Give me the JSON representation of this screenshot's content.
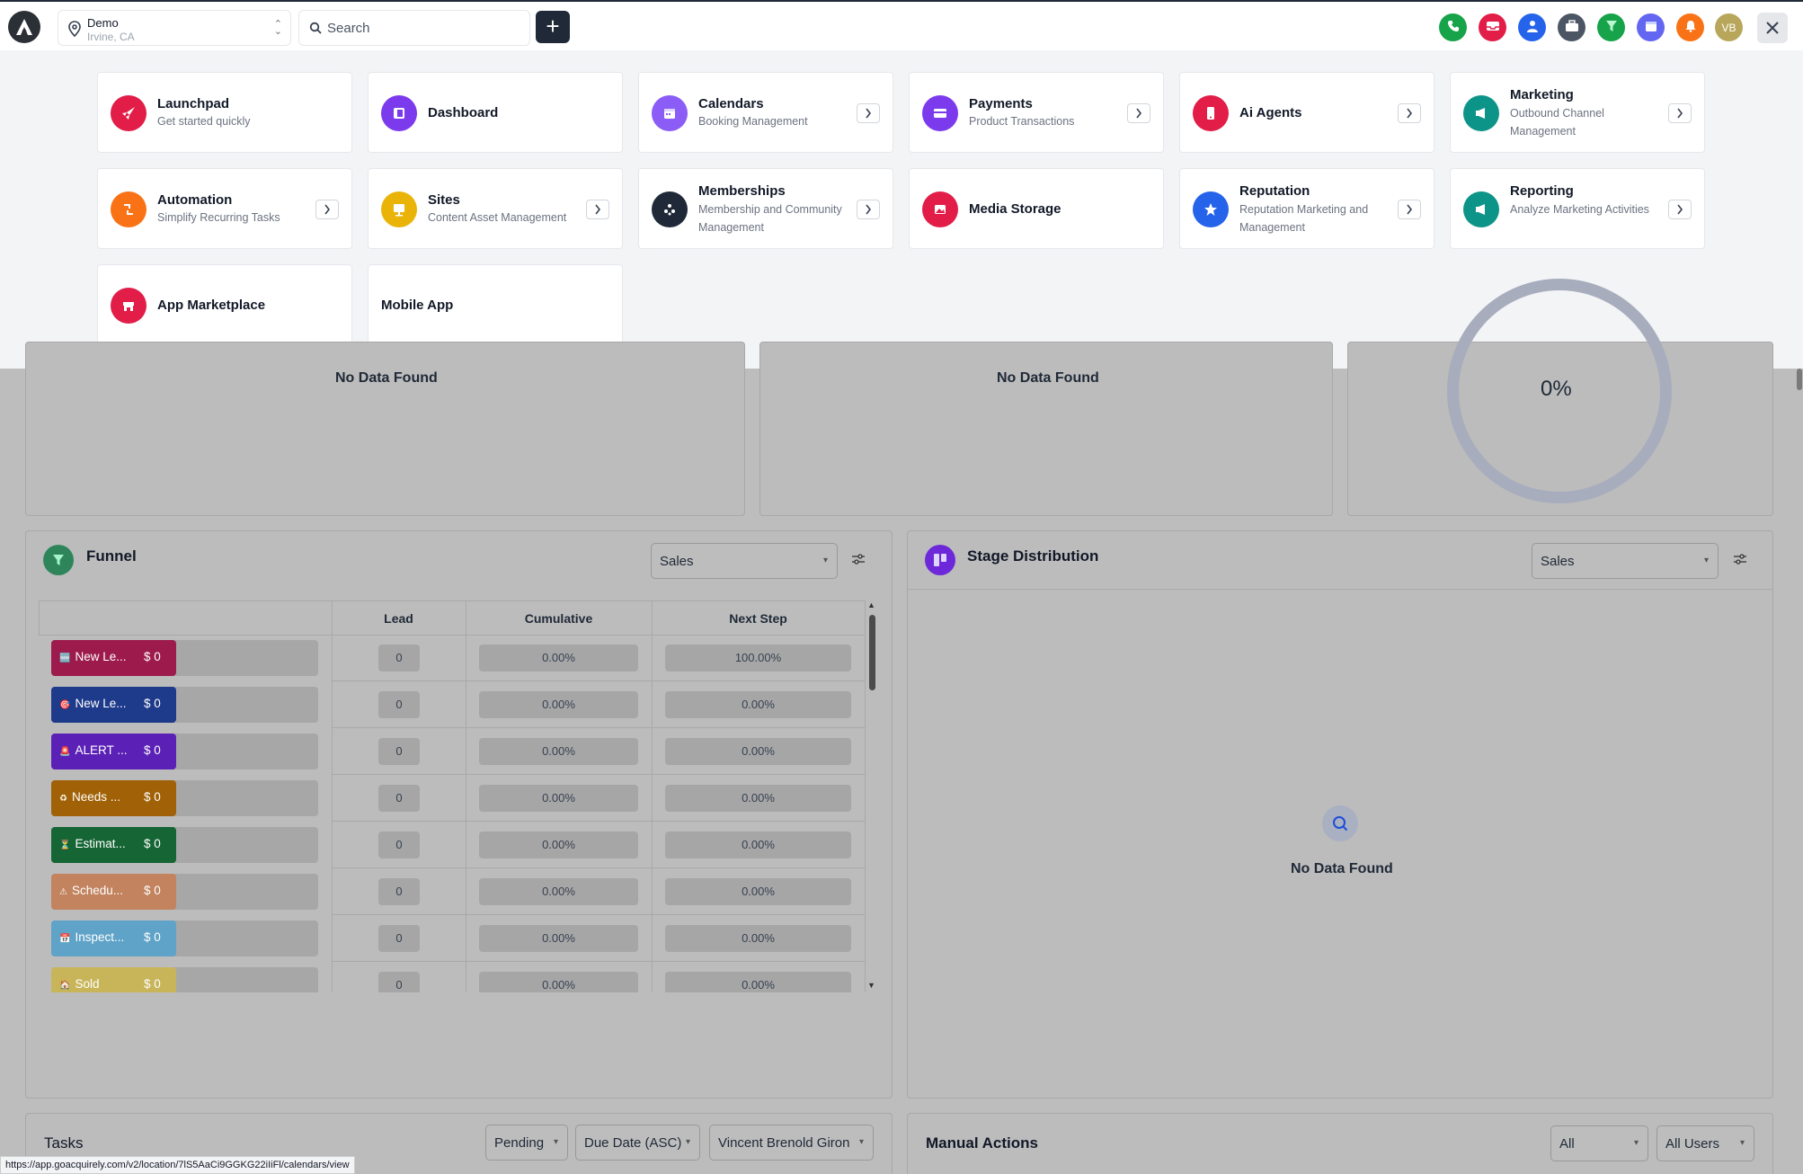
{
  "topbar": {
    "location_name": "Demo",
    "location_sub": "Irvine, CA",
    "search_placeholder": "Search",
    "avatar_initials": "VB",
    "quick_buttons": [
      {
        "name": "phone-icon",
        "color": "#16a34a"
      },
      {
        "name": "inbox-icon",
        "color": "#e11d48"
      },
      {
        "name": "user-icon",
        "color": "#2563eb"
      },
      {
        "name": "briefcase-icon",
        "color": "#4b5563"
      },
      {
        "name": "funnel-icon",
        "color": "#16a34a"
      },
      {
        "name": "calendar-icon",
        "color": "#6366f1"
      },
      {
        "name": "bell-icon",
        "color": "#f97316"
      }
    ]
  },
  "launcher": {
    "cards": [
      {
        "title": "Launchpad",
        "subtitle": "Get started quickly",
        "color": "#e11d48",
        "icon": "rocket-icon",
        "arrow": false
      },
      {
        "title": "Dashboard",
        "subtitle": "",
        "color": "#7c3aed",
        "icon": "dashboard-icon",
        "arrow": false
      },
      {
        "title": "Calendars",
        "subtitle": "Booking Management",
        "color": "#8b5cf6",
        "icon": "calendar-icon",
        "arrow": true
      },
      {
        "title": "Payments",
        "subtitle": "Product Transactions",
        "color": "#7c3aed",
        "icon": "credit-card-icon",
        "arrow": true
      },
      {
        "title": "Ai Agents",
        "subtitle": "",
        "color": "#e11d48",
        "icon": "phone-device-icon",
        "arrow": true
      },
      {
        "title": "Marketing",
        "subtitle": "Outbound Channel Management",
        "color": "#0d9488",
        "icon": "megaphone-icon",
        "arrow": true
      },
      {
        "title": "Automation",
        "subtitle": "Simplify Recurring Tasks",
        "color": "#f97316",
        "icon": "automation-icon",
        "arrow": true
      },
      {
        "title": "Sites",
        "subtitle": "Content Asset Management",
        "color": "#eab308",
        "icon": "sites-icon",
        "arrow": true
      },
      {
        "title": "Memberships",
        "subtitle": "Membership and Community Management",
        "color": "#1f2937",
        "icon": "community-icon",
        "arrow": true
      },
      {
        "title": "Media Storage",
        "subtitle": "",
        "color": "#e11d48",
        "icon": "media-icon",
        "arrow": false
      },
      {
        "title": "Reputation",
        "subtitle": "Reputation Marketing and Management",
        "color": "#2563eb",
        "icon": "star-icon",
        "arrow": true
      },
      {
        "title": "Reporting",
        "subtitle": "Analyze Marketing Activities",
        "color": "#0d9488",
        "icon": "reporting-icon",
        "arrow": true
      },
      {
        "title": "App Marketplace",
        "subtitle": "",
        "color": "#e11d48",
        "icon": "marketplace-icon",
        "arrow": false
      },
      {
        "title": "Mobile App",
        "subtitle": "",
        "color": "",
        "icon": "",
        "arrow": false
      }
    ]
  },
  "dashboard": {
    "no_data_1": "No Data Found",
    "no_data_2": "No Data Found",
    "percent": "0%",
    "funnel": {
      "title": "Funnel",
      "pipeline": "Sales",
      "headers": [
        "Lead",
        "Cumulative",
        "Next Step"
      ],
      "rows": [
        {
          "label": "New Le...",
          "emoji": "🆕",
          "amount": "$ 0",
          "color": "#9d1b4c",
          "lead": "0",
          "cumulative": "0.00%",
          "next": "100.00%"
        },
        {
          "label": "New Le...",
          "emoji": "🎯",
          "amount": "$ 0",
          "color": "#1e3a8a",
          "lead": "0",
          "cumulative": "0.00%",
          "next": "0.00%"
        },
        {
          "label": "ALERT ...",
          "emoji": "🚨",
          "amount": "$ 0",
          "color": "#5b21b6",
          "lead": "0",
          "cumulative": "0.00%",
          "next": "0.00%"
        },
        {
          "label": "Needs ...",
          "emoji": "♻",
          "amount": "$ 0",
          "color": "#a16207",
          "lead": "0",
          "cumulative": "0.00%",
          "next": "0.00%"
        },
        {
          "label": "Estimat...",
          "emoji": "⏳",
          "amount": "$ 0",
          "color": "#166534",
          "lead": "0",
          "cumulative": "0.00%",
          "next": "0.00%"
        },
        {
          "label": "Schedu...",
          "emoji": "⚠",
          "amount": "$ 0",
          "color": "#c2835e",
          "lead": "0",
          "cumulative": "0.00%",
          "next": "0.00%"
        },
        {
          "label": "Inspect...",
          "emoji": "📅",
          "amount": "$ 0",
          "color": "#5fa3c8",
          "lead": "0",
          "cumulative": "0.00%",
          "next": "0.00%"
        },
        {
          "label": "Sold",
          "emoji": "🏠",
          "amount": "$ 0",
          "color": "#c8b55a",
          "lead": "0",
          "cumulative": "0.00%",
          "next": "0.00%"
        }
      ]
    },
    "stage_distribution": {
      "title": "Stage Distribution",
      "pipeline": "Sales",
      "no_data": "No Data Found"
    },
    "tasks": {
      "title": "Tasks",
      "filter_status": "Pending",
      "filter_sort": "Due Date (ASC)",
      "filter_user": "Vincent Brenold Giron"
    },
    "manual_actions": {
      "title": "Manual Actions",
      "filter_type": "All",
      "filter_users": "All Users"
    }
  },
  "statusbar_url": "https://app.goacquirely.com/v2/location/7lS5AaCi9GGKG22iIiFl/calendars/view"
}
